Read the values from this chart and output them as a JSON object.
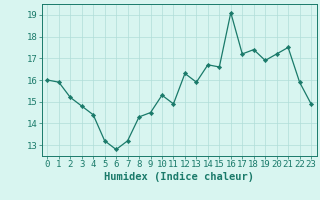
{
  "x": [
    0,
    1,
    2,
    3,
    4,
    5,
    6,
    7,
    8,
    9,
    10,
    11,
    12,
    13,
    14,
    15,
    16,
    17,
    18,
    19,
    20,
    21,
    22,
    23
  ],
  "y": [
    16.0,
    15.9,
    15.2,
    14.8,
    14.4,
    13.2,
    12.8,
    13.2,
    14.3,
    14.5,
    15.3,
    14.9,
    16.3,
    15.9,
    16.7,
    16.6,
    19.1,
    17.2,
    17.4,
    16.9,
    17.2,
    17.5,
    15.9,
    14.9
  ],
  "line_color": "#1a7a6a",
  "marker_color": "#1a7a6a",
  "bg_color": "#d8f5f0",
  "grid_color": "#b0ddd8",
  "xlabel": "Humidex (Indice chaleur)",
  "ylabel": "",
  "xlim": [
    -0.5,
    23.5
  ],
  "ylim": [
    12.5,
    19.5
  ],
  "yticks": [
    13,
    14,
    15,
    16,
    17,
    18,
    19
  ],
  "xticks": [
    0,
    1,
    2,
    3,
    4,
    5,
    6,
    7,
    8,
    9,
    10,
    11,
    12,
    13,
    14,
    15,
    16,
    17,
    18,
    19,
    20,
    21,
    22,
    23
  ],
  "tick_label_fontsize": 6.5,
  "xlabel_fontsize": 7.5,
  "title": ""
}
